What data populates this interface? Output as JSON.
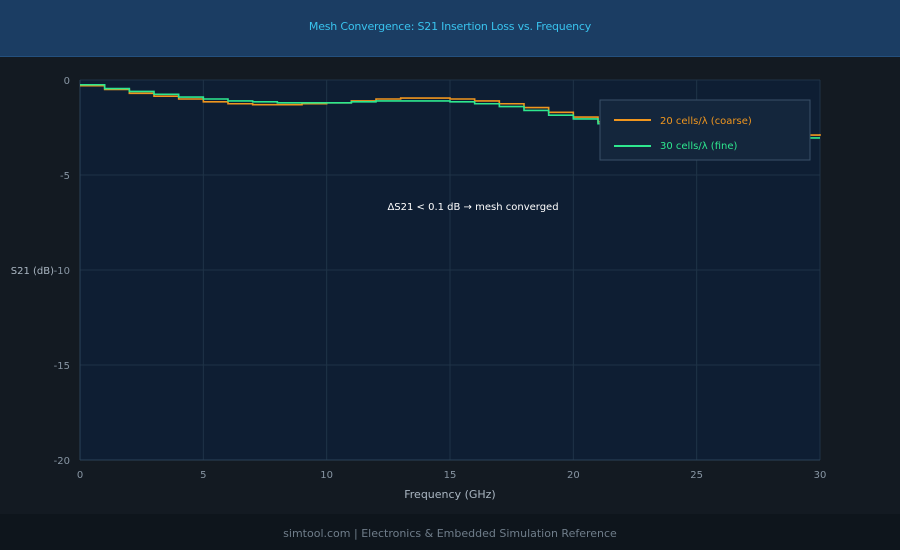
{
  "header": {
    "title": "Mesh Convergence: S21 Insertion Loss vs. Frequency"
  },
  "footer": {
    "text": "simtool.com  |  Electronics & Embedded Simulation Reference"
  },
  "colors": {
    "background": "#131a22",
    "plot_bg": "#0e1e33",
    "grid": "#1f3347",
    "coarse": "#f0961e",
    "fine": "#2ee88f",
    "header_text": "#39c3ee"
  },
  "chart_data": {
    "type": "line",
    "title": "Mesh Convergence: S21 Insertion Loss vs. Frequency",
    "xlabel": "Frequency (GHz)",
    "ylabel": "S21 (dB)",
    "xlim": [
      0,
      30
    ],
    "ylim": [
      -20,
      0
    ],
    "xticks": [
      0,
      5,
      10,
      15,
      20,
      25,
      30
    ],
    "yticks": [
      0,
      -5,
      -10,
      -15,
      -20
    ],
    "grid": true,
    "legend_position": "top-right",
    "annotation": "ΔS21 < 0.1 dB → mesh converged",
    "series": [
      {
        "name": "20 cells/λ (coarse)",
        "step": true,
        "x": [
          0,
          1,
          2,
          3,
          4,
          5,
          6,
          7,
          8,
          9,
          10,
          11,
          12,
          13,
          14,
          15,
          16,
          17,
          18,
          19,
          20,
          21,
          22,
          23,
          24,
          25,
          26,
          27,
          28,
          29,
          30
        ],
        "y": [
          -0.3,
          -0.5,
          -0.7,
          -0.85,
          -1.0,
          -1.15,
          -1.25,
          -1.3,
          -1.3,
          -1.25,
          -1.2,
          -1.1,
          -1.0,
          -0.95,
          -0.95,
          -1.0,
          -1.1,
          -1.25,
          -1.45,
          -1.7,
          -1.95,
          -2.2,
          -2.4,
          -2.6,
          -2.75,
          -2.9,
          -2.95,
          -3.0,
          -3.0,
          -2.9,
          -2.85
        ]
      },
      {
        "name": "30 cells/λ (fine)",
        "step": true,
        "x": [
          0,
          1,
          2,
          3,
          4,
          5,
          6,
          7,
          8,
          9,
          10,
          11,
          12,
          13,
          14,
          15,
          16,
          17,
          18,
          19,
          20,
          21,
          22,
          23,
          24,
          25,
          26,
          27,
          28,
          29,
          30
        ],
        "y": [
          -0.25,
          -0.45,
          -0.6,
          -0.75,
          -0.9,
          -1.0,
          -1.1,
          -1.15,
          -1.2,
          -1.2,
          -1.2,
          -1.15,
          -1.1,
          -1.1,
          -1.1,
          -1.15,
          -1.25,
          -1.4,
          -1.6,
          -1.85,
          -2.05,
          -2.3,
          -2.5,
          -2.65,
          -2.8,
          -2.9,
          -3.0,
          -3.05,
          -3.05,
          -3.05,
          -3.05
        ]
      }
    ]
  }
}
